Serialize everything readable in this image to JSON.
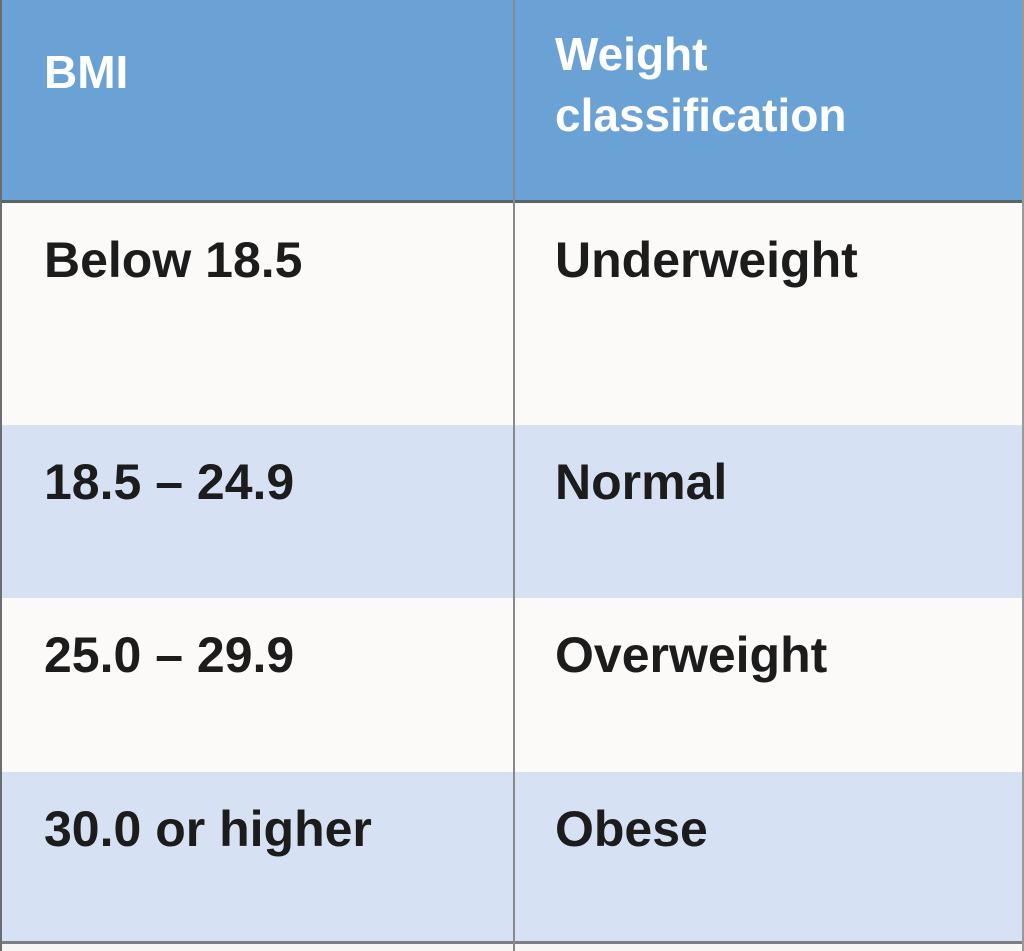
{
  "chart_data": {
    "type": "table",
    "title": "",
    "columns": [
      "BMI",
      "Weight classification"
    ],
    "rows": [
      {
        "bmi": "Below 18.5",
        "classification": "Underweight"
      },
      {
        "bmi": "18.5 – 24.9",
        "classification": "Normal"
      },
      {
        "bmi": "25.0 – 29.9",
        "classification": "Overweight"
      },
      {
        "bmi": "30.0 or higher",
        "classification": "Obese"
      }
    ],
    "layout": {
      "header_position": "top",
      "grid": "horizontal-banding",
      "column_count": 2
    }
  },
  "colors": {
    "header_bg": "#6ba2d6",
    "header_text": "#ffffff",
    "row_bg": "#fbfaf8",
    "row_alt_bg": "#d6e2f3",
    "body_text": "#1c1c1c",
    "divider": "#87898c",
    "header_border": "#5d6468",
    "bottom_border": "#7b7f83"
  }
}
